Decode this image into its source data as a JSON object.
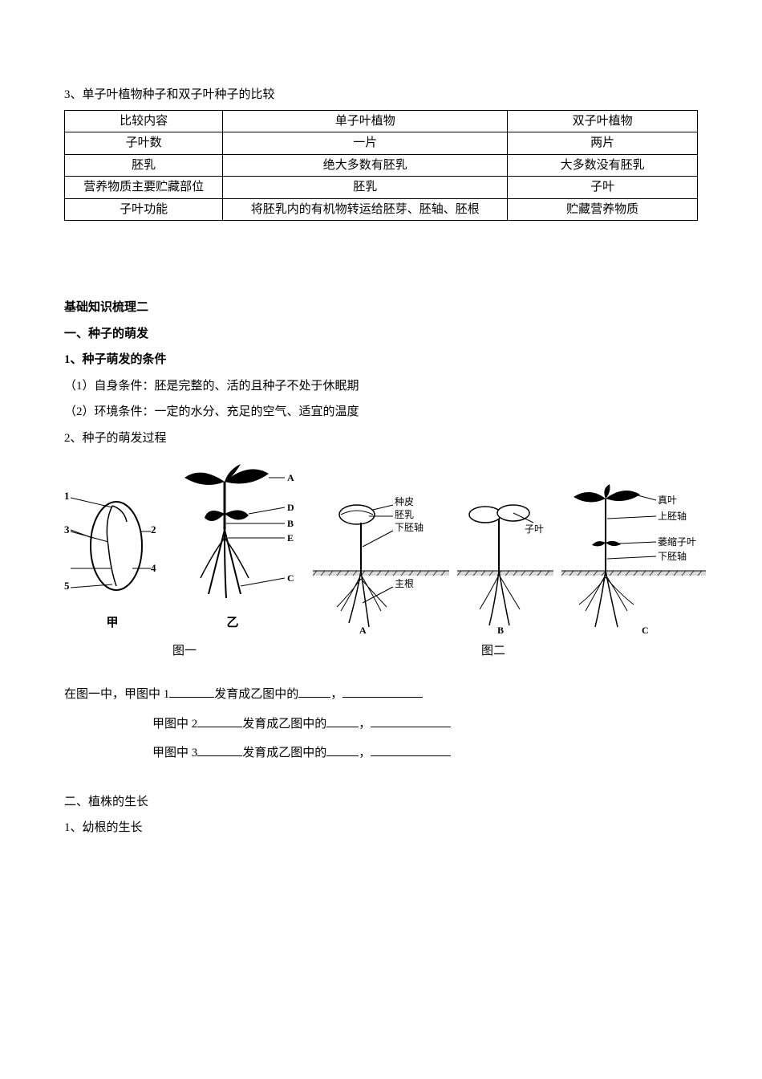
{
  "top": {
    "heading": "3、单子叶植物种子和双子叶种子的比较",
    "table": {
      "rows": [
        [
          "比较内容",
          "单子叶植物",
          "双子叶植物"
        ],
        [
          "子叶数",
          "一片",
          "两片"
        ],
        [
          "胚乳",
          "绝大多数有胚乳",
          "大多数没有胚乳"
        ],
        [
          "营养物质主要贮藏部位",
          "胚乳",
          "子叶"
        ],
        [
          "子叶功能",
          "将胚乳内的有机物转运给胚芽、胚轴、胚根",
          "贮藏营养物质"
        ]
      ],
      "col_widths": [
        "25%",
        "45%",
        "30%"
      ],
      "border_color": "#000000",
      "font_size": 15
    }
  },
  "section2": {
    "title": "基础知识梳理二",
    "h1": "一、种子的萌发",
    "h1a": "1、种子萌发的条件",
    "cond1": "（1）自身条件：胚是完整的、活的且种子不处于休眠期",
    "cond2": "（2）环境条件：一定的水分、充足的空气、适宜的温度",
    "h2": "2、种子的萌发过程"
  },
  "figures": {
    "jia_label": "甲",
    "yi_label": "乙",
    "fig1_caption": "图一",
    "fig2_caption": "图二",
    "seed_numbers": [
      "1",
      "2",
      "3",
      "4",
      "5"
    ],
    "sprout_letters": [
      "A",
      "D",
      "B",
      "E",
      "C"
    ],
    "labelsA": [
      "种皮",
      "胚乳",
      "下胚轴",
      "主根"
    ],
    "labelsB": [
      "子叶"
    ],
    "labelsC": [
      "真叶",
      "上胚轴",
      "萎缩子叶",
      "下胚轴"
    ],
    "colors": {
      "stroke": "#000000",
      "fill": "#ffffff"
    }
  },
  "fills": {
    "intro": "在图一中，甲图中 1",
    "mid1": "发育成乙图中的",
    "row2a": "甲图中 2",
    "row3a": "甲图中 3",
    "comma": "，",
    "blank_short": 56,
    "blank_med": 40,
    "blank_long": 100
  },
  "section3": {
    "h1": "二、植株的生长",
    "h2": "1、幼根的生长"
  }
}
